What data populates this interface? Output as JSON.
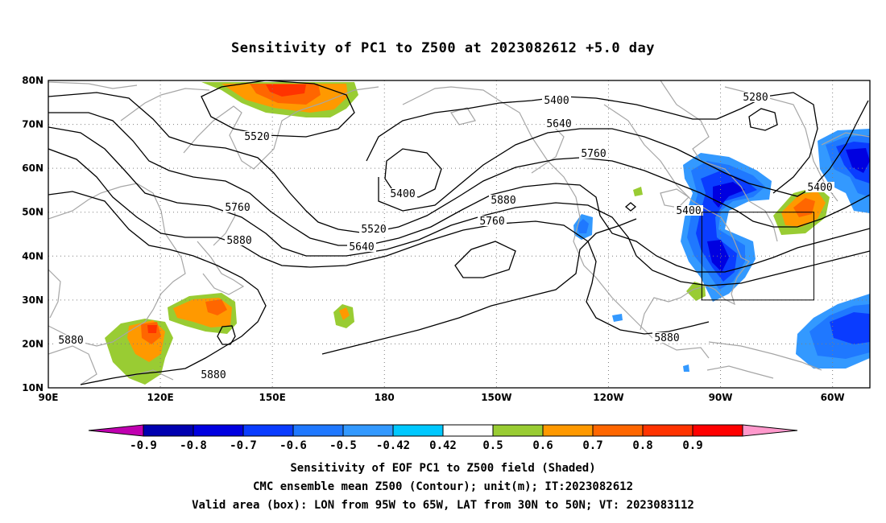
{
  "title": "Sensitivity of PC1 to Z500 at 2023082612 +5.0 day",
  "map": {
    "extent": {
      "lon_min": 90,
      "lon_max": 310,
      "lat_min": 10,
      "lat_max": 80
    },
    "lat_labels": [
      "10N",
      "20N",
      "30N",
      "40N",
      "50N",
      "60N",
      "70N",
      "80N"
    ],
    "lon_labels": [
      "90E",
      "120E",
      "150E",
      "180",
      "150W",
      "120W",
      "90W",
      "60W"
    ],
    "valid_box": {
      "lon_w": -95,
      "lon_e": -65,
      "lat_s": 30,
      "lat_n": 50
    },
    "contour_labels": [
      "5400",
      "5280",
      "5520",
      "5640",
      "5400",
      "5760",
      "5880",
      "5400",
      "5760",
      "5520",
      "5640",
      "5760",
      "5880",
      "5880",
      "5880",
      "5880",
      "5400"
    ],
    "colors": {
      "contour": "#000000",
      "coast": "#a6a6a6",
      "grid": "#7f7f7f"
    }
  },
  "colorbar": {
    "labels": [
      "-0.9",
      "-0.8",
      "-0.7",
      "-0.6",
      "-0.5",
      "-0.42",
      "0.42",
      "0.5",
      "0.6",
      "0.7",
      "0.8",
      "0.9"
    ],
    "colors": [
      "#c000b0",
      "#0000b0",
      "#0000e0",
      "#0a3cff",
      "#1f78ff",
      "#3399ff",
      "#00c8ff",
      "#ffffff",
      "#99cc33",
      "#ff9900",
      "#ff6600",
      "#ff3300",
      "#ff0000",
      "#ff99cc"
    ]
  },
  "captions": [
    "Sensitivity of EOF PC1 to Z500 field (Shaded)",
    "CMC ensemble mean Z500 (Contour); unit(m); IT:2023082612",
    "Valid area (box): LON from 95W to 65W, LAT from 30N to 50N; VT: 2023083112"
  ]
}
